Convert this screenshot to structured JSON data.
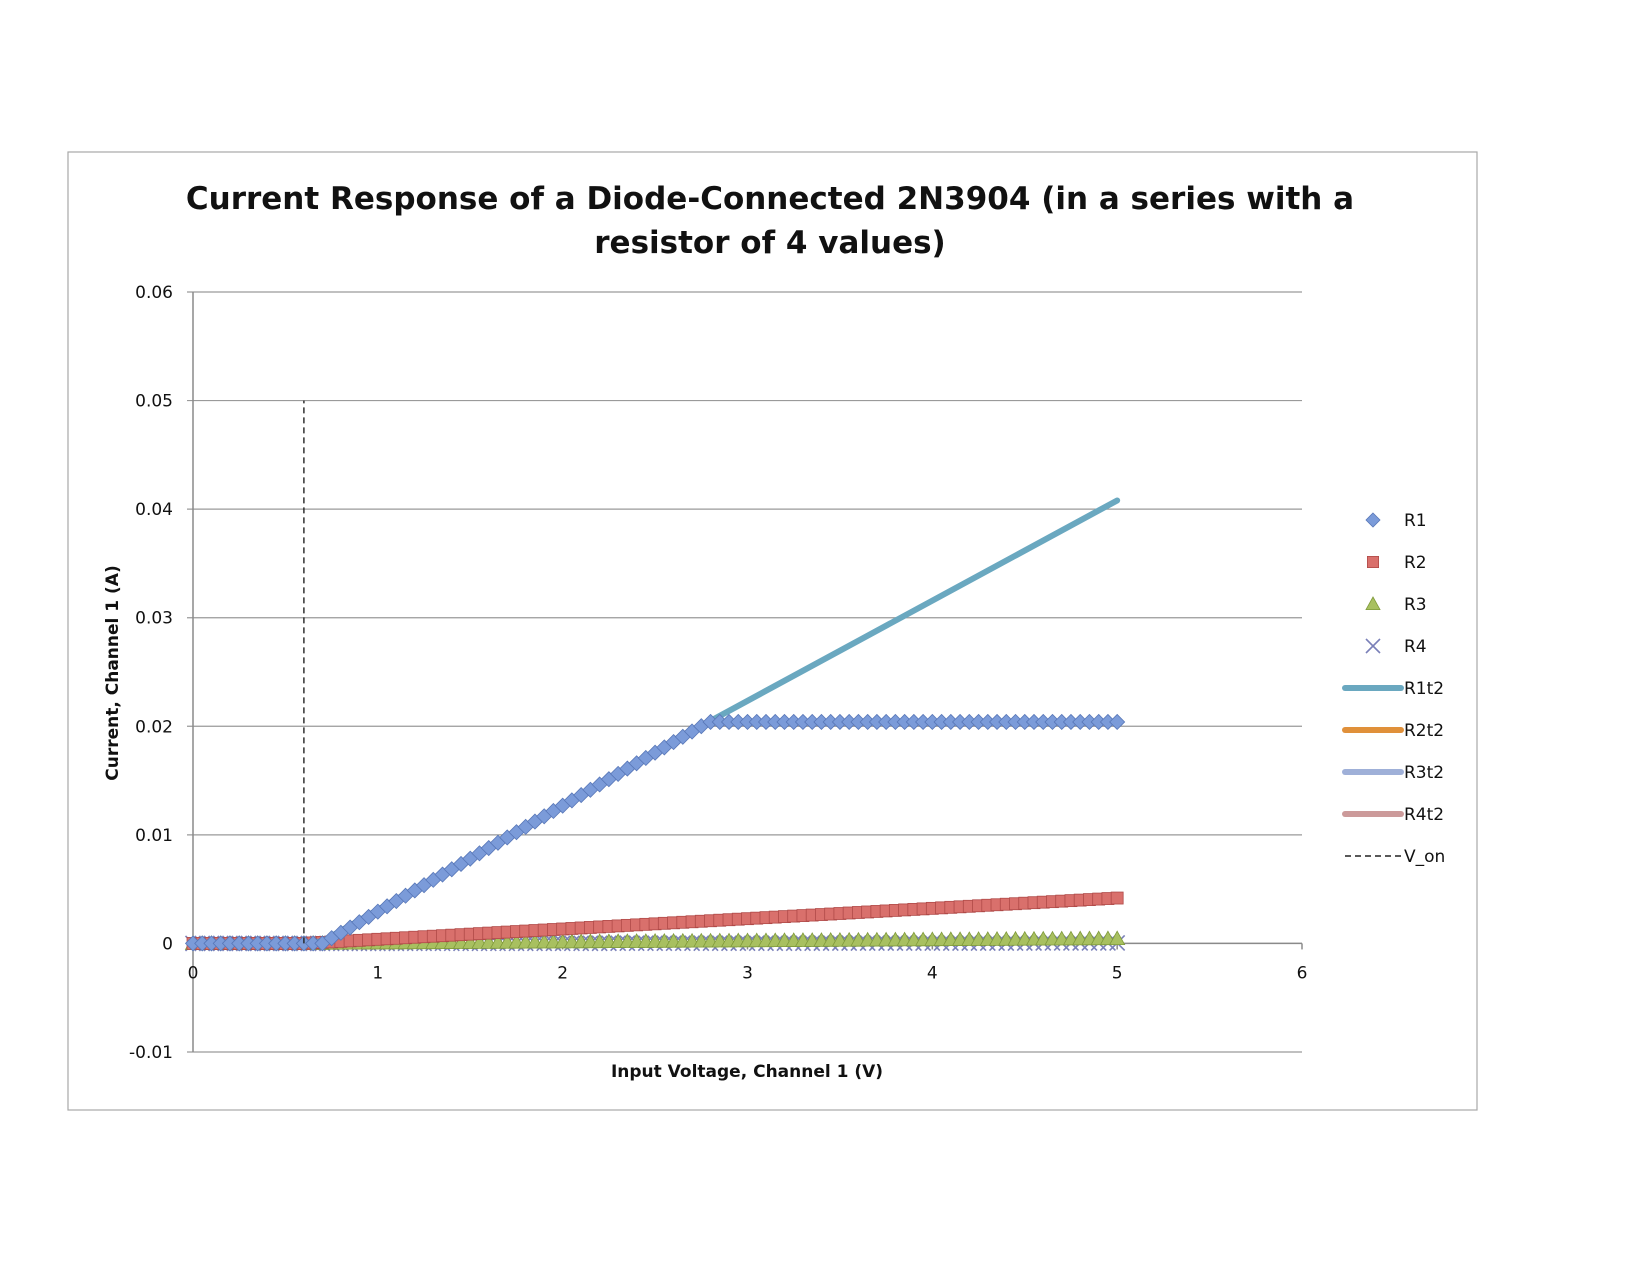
{
  "chart_data": {
    "type": "scatter",
    "title": "Current Response of a Diode-Connected 2N3904 (in a series with a resistor of 4 values)",
    "title_lines": [
      "Current Response of a Diode-Connected 2N3904 (in a series with a",
      "resistor of 4 values)"
    ],
    "xlabel": "Input Voltage, Channel 1 (V)",
    "ylabel": "Current, Channel 1 (A)",
    "xlim": [
      0,
      6
    ],
    "ylim": [
      -0.01,
      0.06
    ],
    "x_ticks": [
      0,
      1,
      2,
      3,
      4,
      5,
      6
    ],
    "x_tick_labels": [
      "0",
      "1",
      "2",
      "3",
      "4",
      "5",
      "6"
    ],
    "y_ticks": [
      -0.01,
      0,
      0.01,
      0.02,
      0.03,
      0.04,
      0.05,
      0.06
    ],
    "y_tick_labels": [
      "-0.01",
      "0",
      "0.01",
      "0.02",
      "0.03",
      "0.04",
      "0.05",
      "0.06"
    ],
    "grid": "horizontal",
    "legend_position": "right",
    "x_sweep": {
      "start": 0,
      "end": 5,
      "step": 0.05
    },
    "series": [
      {
        "name": "R1",
        "kind": "marker",
        "marker": "diamond",
        "color": "#7b9bd9",
        "model": {
          "type": "piecewise",
          "v_on": 0.7,
          "slope": 0.00976,
          "cap": 0.0204
        }
      },
      {
        "name": "R2",
        "kind": "marker",
        "marker": "square",
        "color": "#d9706c",
        "model": {
          "type": "linear",
          "v_on": 0.6,
          "slope": 0.00095,
          "cap": null
        }
      },
      {
        "name": "R3",
        "kind": "marker",
        "marker": "triangle",
        "color": "#a8c060",
        "model": {
          "type": "linear",
          "v_on": 0.6,
          "slope": 0.0001,
          "cap": null
        }
      },
      {
        "name": "R4",
        "kind": "marker",
        "marker": "x",
        "color": "#7a80b8",
        "model": {
          "type": "linear",
          "v_on": 0.6,
          "slope": 1e-05,
          "cap": null
        }
      },
      {
        "name": "R1t2",
        "kind": "line",
        "color": "#6aa8c0",
        "x": [
          0,
          0.6,
          0.7,
          2.8,
          5.0
        ],
        "y": [
          0,
          0,
          0.0002,
          0.0205,
          0.0408
        ]
      },
      {
        "name": "R2t2",
        "kind": "line",
        "color": "#e0903a",
        "x": [],
        "y": []
      },
      {
        "name": "R3t2",
        "kind": "line",
        "color": "#9fb0d8",
        "x": [],
        "y": []
      },
      {
        "name": "R4t2",
        "kind": "line",
        "color": "#cc9a9a",
        "x": [],
        "y": []
      },
      {
        "name": "V_on",
        "kind": "dashed",
        "color": "#222222",
        "x": [
          0.6,
          0.6
        ],
        "y": [
          0,
          0.05
        ]
      }
    ]
  }
}
